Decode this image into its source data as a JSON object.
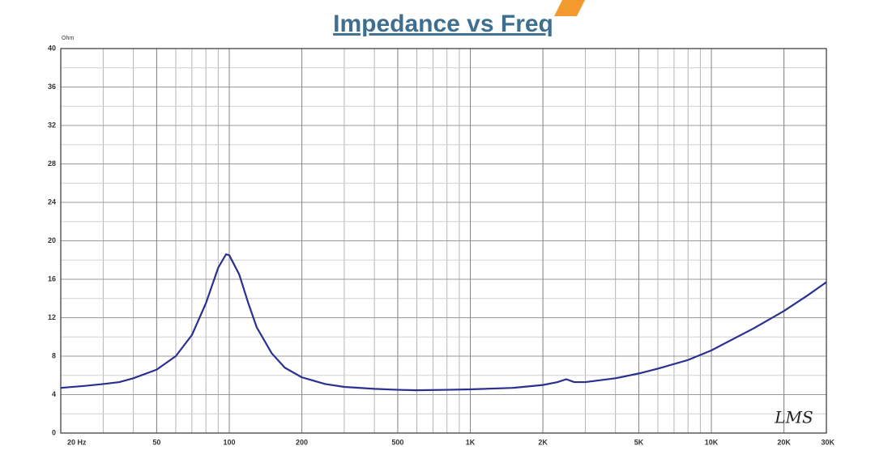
{
  "chart_data": {
    "type": "line",
    "title": "Impedance vs Freq",
    "y_unit_label": "Ohm",
    "watermark": "LMS",
    "xscale": "log",
    "grid": true,
    "color": "#2b2f8f",
    "x": [
      20,
      25,
      30,
      35,
      40,
      50,
      60,
      70,
      80,
      90,
      97,
      100,
      110,
      120,
      130,
      150,
      170,
      200,
      250,
      300,
      400,
      500,
      600,
      800,
      1000,
      1500,
      2000,
      2300,
      2500,
      2700,
      3000,
      4000,
      5000,
      6000,
      8000,
      10000,
      15000,
      20000,
      25000,
      30000
    ],
    "values": [
      4.7,
      4.9,
      5.1,
      5.3,
      5.7,
      6.6,
      8.0,
      10.2,
      13.5,
      17.2,
      18.6,
      18.5,
      16.5,
      13.5,
      11.0,
      8.3,
      6.8,
      5.8,
      5.1,
      4.8,
      4.6,
      4.5,
      4.45,
      4.5,
      4.55,
      4.7,
      5.0,
      5.3,
      5.6,
      5.3,
      5.3,
      5.7,
      6.2,
      6.7,
      7.6,
      8.6,
      10.9,
      12.7,
      14.3,
      15.7
    ],
    "xlim": [
      20,
      30000
    ],
    "xticks": [
      {
        "value": 20,
        "label": "20 Hz"
      },
      50,
      100,
      200,
      500,
      {
        "value": 1000,
        "label": "1K"
      },
      {
        "value": 2000,
        "label": "2K"
      },
      {
        "value": 5000,
        "label": "5K"
      },
      {
        "value": 10000,
        "label": "10K"
      },
      {
        "value": 20000,
        "label": "20K"
      },
      {
        "value": 30000,
        "label": "30K"
      }
    ],
    "ylim": [
      0,
      40
    ],
    "yticks": [
      0,
      4,
      8,
      12,
      16,
      20,
      24,
      28,
      32,
      36,
      40
    ]
  }
}
